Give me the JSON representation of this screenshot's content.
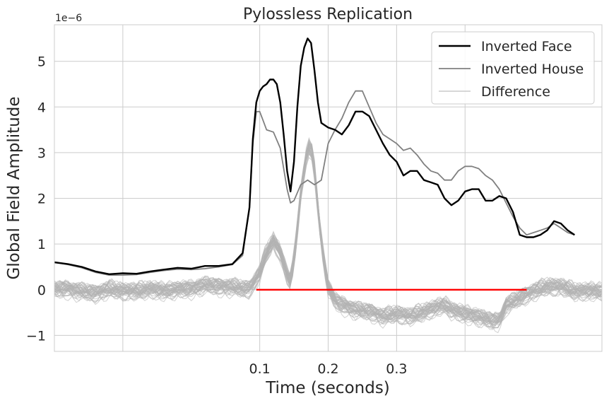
{
  "chart_data": {
    "type": "line",
    "title": "Pylossless Replication",
    "xlabel": "Time (seconds)",
    "ylabel": "Global Field Amplitude",
    "y_offset_text": "1e−6",
    "y_scale": 1e-06,
    "xlim": [
      -0.2,
      0.6
    ],
    "ylim": [
      -1.35,
      5.8
    ],
    "grid": true,
    "legend": "top-right",
    "x_ticks": [
      {
        "value": -0.1,
        "label": ""
      },
      {
        "value": 0.1,
        "label": "0.1"
      },
      {
        "value": 0.2,
        "label": "0.2"
      },
      {
        "value": 0.3,
        "label": "0.3"
      },
      {
        "value": 0.4,
        "label": ""
      }
    ],
    "y_ticks": [
      {
        "value": -1,
        "label": "−1"
      },
      {
        "value": 0,
        "label": "0"
      },
      {
        "value": 1,
        "label": "1"
      },
      {
        "value": 2,
        "label": "2"
      },
      {
        "value": 3,
        "label": "3"
      },
      {
        "value": 4,
        "label": "4"
      },
      {
        "value": 5,
        "label": "5"
      }
    ],
    "series": [
      {
        "name": "Inverted Face",
        "color": "#000000",
        "points": [
          [
            -0.2,
            0.6
          ],
          [
            -0.18,
            0.56
          ],
          [
            -0.16,
            0.5
          ],
          [
            -0.14,
            0.4
          ],
          [
            -0.12,
            0.34
          ],
          [
            -0.1,
            0.36
          ],
          [
            -0.08,
            0.35
          ],
          [
            -0.06,
            0.4
          ],
          [
            -0.04,
            0.44
          ],
          [
            -0.02,
            0.48
          ],
          [
            0.0,
            0.46
          ],
          [
            0.02,
            0.52
          ],
          [
            0.04,
            0.52
          ],
          [
            0.06,
            0.56
          ],
          [
            0.075,
            0.8
          ],
          [
            0.085,
            1.8
          ],
          [
            0.09,
            3.3
          ],
          [
            0.095,
            4.1
          ],
          [
            0.1,
            4.35
          ],
          [
            0.105,
            4.45
          ],
          [
            0.11,
            4.5
          ],
          [
            0.115,
            4.6
          ],
          [
            0.12,
            4.6
          ],
          [
            0.125,
            4.5
          ],
          [
            0.13,
            4.1
          ],
          [
            0.135,
            3.4
          ],
          [
            0.14,
            2.6
          ],
          [
            0.145,
            2.15
          ],
          [
            0.15,
            2.8
          ],
          [
            0.155,
            4.0
          ],
          [
            0.16,
            4.9
          ],
          [
            0.165,
            5.3
          ],
          [
            0.17,
            5.5
          ],
          [
            0.175,
            5.4
          ],
          [
            0.18,
            4.8
          ],
          [
            0.185,
            4.1
          ],
          [
            0.19,
            3.65
          ],
          [
            0.2,
            3.55
          ],
          [
            0.21,
            3.5
          ],
          [
            0.22,
            3.4
          ],
          [
            0.23,
            3.6
          ],
          [
            0.24,
            3.9
          ],
          [
            0.25,
            3.9
          ],
          [
            0.26,
            3.8
          ],
          [
            0.27,
            3.5
          ],
          [
            0.28,
            3.2
          ],
          [
            0.29,
            2.95
          ],
          [
            0.3,
            2.8
          ],
          [
            0.31,
            2.5
          ],
          [
            0.32,
            2.6
          ],
          [
            0.33,
            2.6
          ],
          [
            0.34,
            2.4
          ],
          [
            0.35,
            2.35
          ],
          [
            0.36,
            2.3
          ],
          [
            0.37,
            2.0
          ],
          [
            0.38,
            1.85
          ],
          [
            0.39,
            1.95
          ],
          [
            0.4,
            2.15
          ],
          [
            0.41,
            2.2
          ],
          [
            0.42,
            2.2
          ],
          [
            0.43,
            1.95
          ],
          [
            0.44,
            1.95
          ],
          [
            0.45,
            2.05
          ],
          [
            0.46,
            2.0
          ],
          [
            0.47,
            1.7
          ],
          [
            0.48,
            1.2
          ],
          [
            0.49,
            1.15
          ],
          [
            0.5,
            1.15
          ],
          [
            0.51,
            1.2
          ],
          [
            0.52,
            1.3
          ],
          [
            0.53,
            1.5
          ],
          [
            0.54,
            1.45
          ],
          [
            0.55,
            1.3
          ],
          [
            0.56,
            1.2
          ]
        ]
      },
      {
        "name": "Inverted House",
        "color": "#808080",
        "points": [
          [
            -0.2,
            0.6
          ],
          [
            -0.18,
            0.55
          ],
          [
            -0.16,
            0.48
          ],
          [
            -0.14,
            0.38
          ],
          [
            -0.12,
            0.32
          ],
          [
            -0.1,
            0.32
          ],
          [
            -0.08,
            0.33
          ],
          [
            -0.06,
            0.38
          ],
          [
            -0.04,
            0.42
          ],
          [
            -0.02,
            0.45
          ],
          [
            0.0,
            0.44
          ],
          [
            0.02,
            0.46
          ],
          [
            0.04,
            0.5
          ],
          [
            0.06,
            0.55
          ],
          [
            0.075,
            0.75
          ],
          [
            0.085,
            1.8
          ],
          [
            0.09,
            3.2
          ],
          [
            0.095,
            3.9
          ],
          [
            0.1,
            3.9
          ],
          [
            0.105,
            3.7
          ],
          [
            0.11,
            3.5
          ],
          [
            0.12,
            3.45
          ],
          [
            0.13,
            3.1
          ],
          [
            0.14,
            2.2
          ],
          [
            0.145,
            1.9
          ],
          [
            0.15,
            1.95
          ],
          [
            0.16,
            2.3
          ],
          [
            0.17,
            2.4
          ],
          [
            0.18,
            2.3
          ],
          [
            0.19,
            2.4
          ],
          [
            0.2,
            3.2
          ],
          [
            0.21,
            3.5
          ],
          [
            0.22,
            3.75
          ],
          [
            0.23,
            4.1
          ],
          [
            0.24,
            4.35
          ],
          [
            0.25,
            4.35
          ],
          [
            0.26,
            4.0
          ],
          [
            0.27,
            3.65
          ],
          [
            0.28,
            3.4
          ],
          [
            0.29,
            3.3
          ],
          [
            0.3,
            3.2
          ],
          [
            0.31,
            3.05
          ],
          [
            0.32,
            3.1
          ],
          [
            0.33,
            2.95
          ],
          [
            0.34,
            2.75
          ],
          [
            0.35,
            2.6
          ],
          [
            0.36,
            2.55
          ],
          [
            0.37,
            2.4
          ],
          [
            0.38,
            2.4
          ],
          [
            0.39,
            2.6
          ],
          [
            0.4,
            2.7
          ],
          [
            0.41,
            2.7
          ],
          [
            0.42,
            2.65
          ],
          [
            0.43,
            2.5
          ],
          [
            0.44,
            2.4
          ],
          [
            0.45,
            2.2
          ],
          [
            0.46,
            1.9
          ],
          [
            0.47,
            1.6
          ],
          [
            0.48,
            1.35
          ],
          [
            0.49,
            1.2
          ],
          [
            0.5,
            1.25
          ],
          [
            0.51,
            1.3
          ],
          [
            0.52,
            1.35
          ],
          [
            0.53,
            1.45
          ],
          [
            0.54,
            1.35
          ],
          [
            0.55,
            1.25
          ],
          [
            0.56,
            1.2
          ]
        ]
      },
      {
        "name": "Difference",
        "color": "#b3b3b3",
        "spread": 0.2,
        "points": [
          [
            -0.2,
            0.0
          ],
          [
            -0.18,
            0.0
          ],
          [
            -0.16,
            -0.05
          ],
          [
            -0.14,
            -0.1
          ],
          [
            -0.12,
            0.0
          ],
          [
            -0.1,
            -0.05
          ],
          [
            -0.08,
            -0.05
          ],
          [
            -0.06,
            0.0
          ],
          [
            -0.04,
            -0.05
          ],
          [
            -0.02,
            0.0
          ],
          [
            0.0,
            0.0
          ],
          [
            0.02,
            0.1
          ],
          [
            0.04,
            0.05
          ],
          [
            0.06,
            0.05
          ],
          [
            0.075,
            0.0
          ],
          [
            0.085,
            0.0
          ],
          [
            0.09,
            0.1
          ],
          [
            0.1,
            0.35
          ],
          [
            0.11,
            0.8
          ],
          [
            0.12,
            1.05
          ],
          [
            0.13,
            0.8
          ],
          [
            0.14,
            0.3
          ],
          [
            0.145,
            0.15
          ],
          [
            0.15,
            0.6
          ],
          [
            0.16,
            2.1
          ],
          [
            0.17,
            3.1
          ],
          [
            0.175,
            3.1
          ],
          [
            0.18,
            2.6
          ],
          [
            0.19,
            1.0
          ],
          [
            0.2,
            0.05
          ],
          [
            0.21,
            -0.25
          ],
          [
            0.22,
            -0.35
          ],
          [
            0.24,
            -0.45
          ],
          [
            0.26,
            -0.5
          ],
          [
            0.28,
            -0.6
          ],
          [
            0.3,
            -0.55
          ],
          [
            0.32,
            -0.6
          ],
          [
            0.34,
            -0.5
          ],
          [
            0.36,
            -0.4
          ],
          [
            0.37,
            -0.35
          ],
          [
            0.38,
            -0.45
          ],
          [
            0.4,
            -0.55
          ],
          [
            0.42,
            -0.6
          ],
          [
            0.44,
            -0.7
          ],
          [
            0.45,
            -0.7
          ],
          [
            0.46,
            -0.35
          ],
          [
            0.48,
            -0.2
          ],
          [
            0.5,
            -0.05
          ],
          [
            0.52,
            0.05
          ],
          [
            0.54,
            0.05
          ],
          [
            0.56,
            -0.05
          ]
        ]
      }
    ],
    "annotations": [
      {
        "type": "hline",
        "y": 0,
        "x_start": 0.095,
        "x_end": 0.49,
        "color": "#ff0000"
      }
    ]
  }
}
